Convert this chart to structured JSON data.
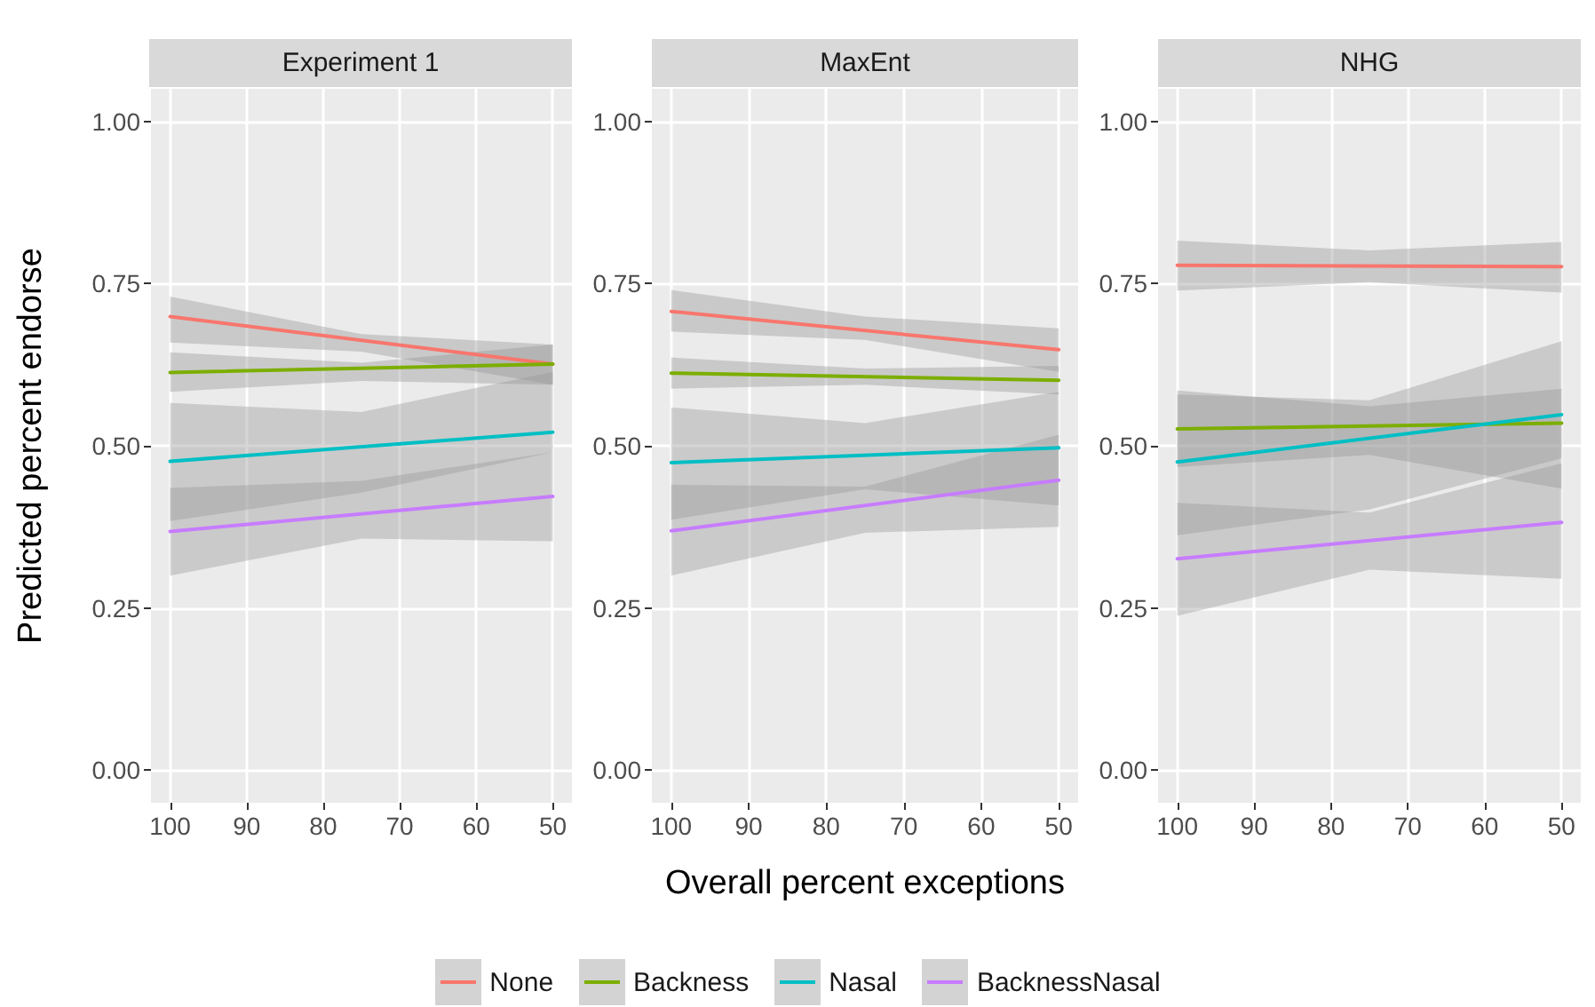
{
  "chart_data": [
    {
      "type": "line",
      "title": "Experiment 1",
      "ylabel": "Predicted percent endorse",
      "x": [
        100,
        75,
        50
      ],
      "xlim": [
        102.5,
        47.5
      ],
      "xticks": [
        100,
        90,
        80,
        70,
        60,
        50
      ],
      "ylim": [
        -0.05,
        1.05
      ],
      "yticks": [
        {
          "value": 0,
          "label": "0.00"
        },
        {
          "value": 0.25,
          "label": "0.25"
        },
        {
          "value": 0.5,
          "label": "0.50"
        },
        {
          "value": 0.75,
          "label": "0.75"
        },
        {
          "value": 1,
          "label": "1.00"
        }
      ],
      "grid": true,
      "legend": "bottom",
      "marker": "none",
      "series": [
        {
          "name": "None",
          "color": "#f8766d",
          "values": [
            0.699,
            null,
            0.626
          ],
          "lower": [
            0.659,
            0.645,
            0.594
          ],
          "upper": [
            0.73,
            0.672,
            0.656
          ]
        },
        {
          "name": "Backness",
          "color": "#7cae00",
          "values": [
            0.613,
            null,
            0.626
          ],
          "lower": [
            0.583,
            0.6,
            0.594
          ],
          "upper": [
            0.644,
            0.628,
            0.656
          ]
        },
        {
          "name": "Nasal",
          "color": "#00bfc4",
          "values": [
            0.476,
            null,
            0.521
          ],
          "lower": [
            0.384,
            0.428,
            0.49
          ],
          "upper": [
            0.566,
            0.552,
            0.614
          ]
        },
        {
          "name": "BacknessNasal",
          "color": "#c77cff",
          "values": [
            0.368,
            null,
            0.422
          ],
          "lower": [
            0.3,
            0.357,
            0.353
          ],
          "upper": [
            0.435,
            0.446,
            0.49
          ]
        }
      ]
    },
    {
      "type": "line",
      "title": "MaxEnt",
      "xlabel": "Overall percent exceptions",
      "x": [
        100,
        75,
        50
      ],
      "xlim": [
        102.5,
        47.5
      ],
      "xticks": [
        100,
        90,
        80,
        70,
        60,
        50
      ],
      "ylim": [
        -0.05,
        1.05
      ],
      "yticks": [
        {
          "value": 0,
          "label": "0.00"
        },
        {
          "value": 0.25,
          "label": "0.25"
        },
        {
          "value": 0.5,
          "label": "0.50"
        },
        {
          "value": 0.75,
          "label": "0.75"
        },
        {
          "value": 1,
          "label": "1.00"
        }
      ],
      "grid": true,
      "marker": "none",
      "series": [
        {
          "color": "#f8766d",
          "values": [
            0.707,
            null,
            0.648
          ],
          "lower": [
            0.676,
            0.663,
            0.614
          ],
          "upper": [
            0.74,
            0.699,
            0.681
          ]
        },
        {
          "color": "#7cae00",
          "values": [
            0.612,
            null,
            0.601
          ],
          "lower": [
            0.588,
            0.594,
            0.579
          ],
          "upper": [
            0.636,
            0.619,
            0.623
          ]
        },
        {
          "color": "#00bfc4",
          "values": [
            0.474,
            null,
            0.497
          ],
          "lower": [
            0.386,
            0.433,
            0.408
          ],
          "upper": [
            0.559,
            0.535,
            0.583
          ]
        },
        {
          "color": "#c77cff",
          "values": [
            0.369,
            null,
            0.447
          ],
          "lower": [
            0.3,
            0.366,
            0.375
          ],
          "upper": [
            0.44,
            0.437,
            0.517
          ]
        }
      ]
    },
    {
      "type": "line",
      "title": "NHG",
      "x": [
        100,
        75,
        50
      ],
      "xlim": [
        102.5,
        47.5
      ],
      "xticks": [
        100,
        90,
        80,
        70,
        60,
        50
      ],
      "ylim": [
        -0.05,
        1.05
      ],
      "yticks": [
        {
          "value": 0,
          "label": "0.00"
        },
        {
          "value": 0.25,
          "label": "0.25"
        },
        {
          "value": 0.5,
          "label": "0.50"
        },
        {
          "value": 0.75,
          "label": "0.75"
        },
        {
          "value": 1,
          "label": "1.00"
        }
      ],
      "grid": true,
      "marker": "none",
      "series": [
        {
          "color": "#f8766d",
          "values": [
            0.778,
            null,
            0.776
          ],
          "lower": [
            0.739,
            0.752,
            0.736
          ],
          "upper": [
            0.816,
            0.801,
            0.814
          ]
        },
        {
          "color": "#7cae00",
          "values": [
            0.526,
            null,
            0.535
          ],
          "lower": [
            0.467,
            0.486,
            0.434
          ],
          "upper": [
            0.585,
            0.561,
            0.588
          ]
        },
        {
          "color": "#00bfc4",
          "values": [
            0.475,
            null,
            0.548
          ],
          "lower": [
            0.362,
            0.402,
            0.481
          ],
          "upper": [
            0.579,
            0.57,
            0.661
          ]
        },
        {
          "color": "#c77cff",
          "values": [
            0.326,
            null,
            0.382
          ],
          "lower": [
            0.238,
            0.309,
            0.295
          ],
          "upper": [
            0.412,
            0.397,
            0.473
          ]
        }
      ]
    }
  ]
}
